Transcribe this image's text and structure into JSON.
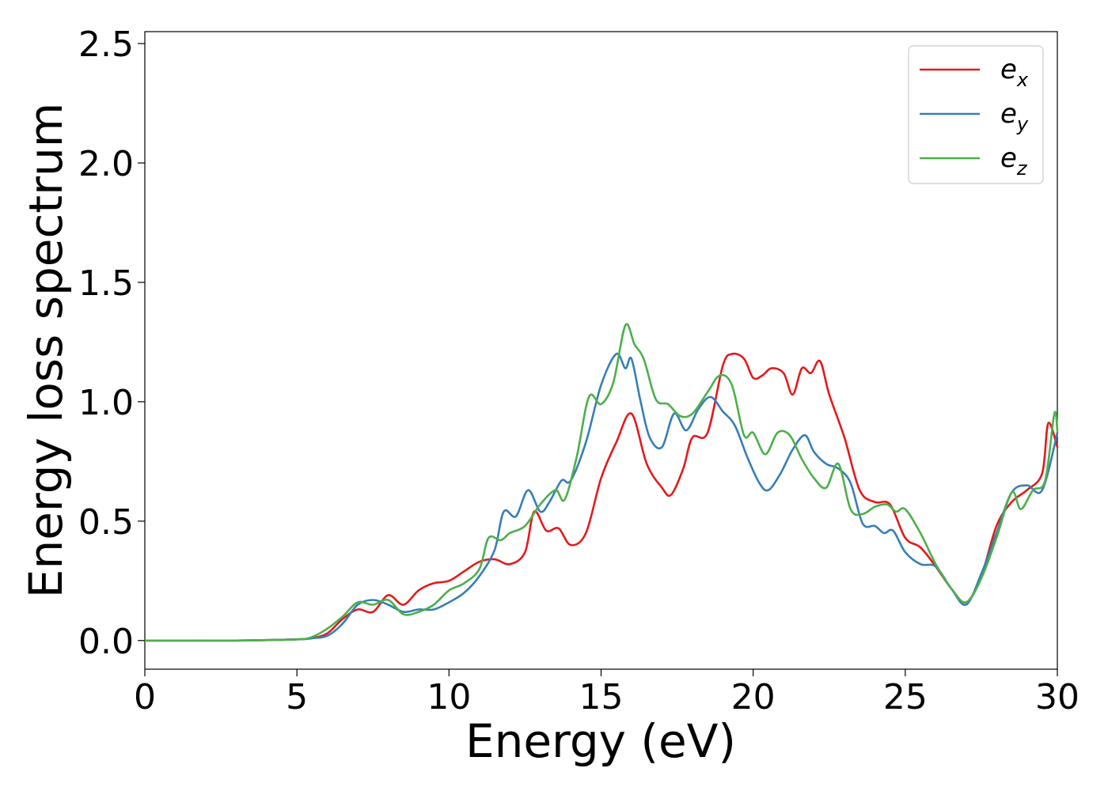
{
  "chart_data": {
    "type": "line",
    "xlabel": "Energy (eV)",
    "ylabel": "Energy loss spectrum",
    "xlim": [
      0,
      30
    ],
    "ylim": [
      -0.12,
      2.55
    ],
    "xticks": [
      0,
      5,
      10,
      15,
      20,
      25,
      30
    ],
    "yticks": [
      0.0,
      0.5,
      1.0,
      1.5,
      2.0,
      2.5
    ],
    "xtick_labels": [
      "0",
      "5",
      "10",
      "15",
      "20",
      "25",
      "30"
    ],
    "ytick_labels": [
      "0.0",
      "0.5",
      "1.0",
      "1.5",
      "2.0",
      "2.5"
    ],
    "grid": false,
    "legend_position": "top-right",
    "series": [
      {
        "name": "e",
        "subscript": "x",
        "color": "#e41a1c",
        "x": [
          0,
          3,
          5,
          5.5,
          6,
          6.5,
          7,
          7.5,
          8,
          8.5,
          9,
          9.5,
          10,
          10.5,
          11,
          11.5,
          12,
          12.5,
          12.8,
          13.2,
          13.6,
          14,
          14.5,
          15,
          15.5,
          16,
          16.5,
          17,
          17.3,
          17.7,
          18,
          18.5,
          19,
          19.3,
          19.7,
          20,
          20.3,
          20.6,
          21,
          21.3,
          21.6,
          21.9,
          22.2,
          22.5,
          23,
          23.5,
          24,
          24.5,
          25,
          25.5,
          26,
          26.5,
          27,
          27.5,
          28,
          28.5,
          29,
          29.5,
          29.7,
          30
        ],
        "y": [
          0,
          0,
          0.005,
          0.01,
          0.03,
          0.09,
          0.13,
          0.12,
          0.19,
          0.15,
          0.21,
          0.24,
          0.25,
          0.29,
          0.33,
          0.34,
          0.32,
          0.37,
          0.54,
          0.46,
          0.47,
          0.4,
          0.45,
          0.68,
          0.83,
          0.95,
          0.74,
          0.64,
          0.61,
          0.72,
          0.85,
          0.87,
          1.15,
          1.2,
          1.18,
          1.1,
          1.11,
          1.14,
          1.12,
          1.03,
          1.14,
          1.12,
          1.17,
          1.03,
          0.85,
          0.63,
          0.58,
          0.57,
          0.43,
          0.39,
          0.31,
          0.22,
          0.16,
          0.27,
          0.48,
          0.58,
          0.63,
          0.7,
          0.91,
          0.81
        ]
      },
      {
        "name": "e",
        "subscript": "y",
        "color": "#377eb8",
        "x": [
          0,
          3,
          5,
          5.5,
          6,
          6.5,
          7,
          7.5,
          8,
          8.5,
          9,
          9.5,
          10,
          10.5,
          11,
          11.5,
          11.8,
          12.2,
          12.6,
          13,
          13.3,
          13.7,
          14,
          14.5,
          15,
          15.5,
          15.8,
          16,
          16.3,
          16.6,
          17,
          17.4,
          17.8,
          18.2,
          18.6,
          19,
          19.4,
          19.8,
          20.2,
          20.5,
          20.9,
          21.3,
          21.7,
          22,
          22.4,
          22.8,
          23.2,
          23.6,
          24,
          24.3,
          24.6,
          25,
          25.5,
          26,
          26.5,
          27,
          27.5,
          28,
          28.5,
          29,
          29.5,
          30
        ],
        "y": [
          0,
          0,
          0.005,
          0.01,
          0.02,
          0.07,
          0.15,
          0.17,
          0.15,
          0.12,
          0.13,
          0.13,
          0.16,
          0.2,
          0.27,
          0.38,
          0.54,
          0.52,
          0.63,
          0.54,
          0.58,
          0.67,
          0.67,
          0.83,
          1.07,
          1.2,
          1.14,
          1.18,
          1.0,
          0.85,
          0.81,
          0.95,
          0.88,
          0.97,
          1.02,
          0.96,
          0.9,
          0.77,
          0.66,
          0.63,
          0.7,
          0.8,
          0.86,
          0.79,
          0.74,
          0.72,
          0.66,
          0.49,
          0.48,
          0.45,
          0.46,
          0.37,
          0.32,
          0.31,
          0.22,
          0.15,
          0.28,
          0.45,
          0.62,
          0.65,
          0.63,
          0.87
        ]
      },
      {
        "name": "e",
        "subscript": "z",
        "color": "#4daf4a",
        "x": [
          0,
          3,
          5,
          5.5,
          6,
          6.5,
          7,
          7.5,
          8,
          8.5,
          9,
          9.5,
          10,
          10.5,
          11,
          11.3,
          11.7,
          12,
          12.5,
          13,
          13.5,
          13.8,
          14.2,
          14.6,
          15,
          15.4,
          15.8,
          16.1,
          16.4,
          16.8,
          17.2,
          17.6,
          18,
          18.5,
          18.9,
          19.3,
          19.7,
          20,
          20.4,
          20.8,
          21.2,
          21.6,
          22,
          22.4,
          22.8,
          23.2,
          23.6,
          24,
          24.4,
          24.7,
          25,
          25.5,
          26,
          26.5,
          27,
          27.5,
          28,
          28.5,
          28.8,
          29.2,
          29.6,
          29.9,
          30
        ],
        "y": [
          0,
          0,
          0.005,
          0.015,
          0.05,
          0.1,
          0.16,
          0.15,
          0.17,
          0.11,
          0.12,
          0.15,
          0.21,
          0.24,
          0.3,
          0.43,
          0.42,
          0.45,
          0.48,
          0.57,
          0.63,
          0.59,
          0.77,
          1.02,
          0.99,
          1.08,
          1.32,
          1.24,
          1.18,
          1.01,
          0.99,
          0.94,
          0.95,
          1.04,
          1.11,
          1.07,
          0.86,
          0.87,
          0.78,
          0.87,
          0.86,
          0.76,
          0.68,
          0.64,
          0.74,
          0.55,
          0.53,
          0.56,
          0.57,
          0.54,
          0.55,
          0.45,
          0.32,
          0.22,
          0.16,
          0.26,
          0.43,
          0.62,
          0.55,
          0.63,
          0.67,
          0.95,
          0.88
        ]
      }
    ]
  }
}
